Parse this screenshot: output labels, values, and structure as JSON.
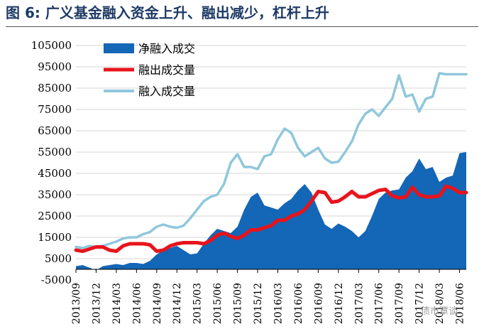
{
  "title": "图 6:  广义基金融入资金上升、融出减少，杠杆上升",
  "watermark": "债市覃谈",
  "colors": {
    "net_fill": "#1466b6",
    "lend_line": "#e8141b",
    "borrow_line": "#8fc7db",
    "title": "#1f3b66"
  },
  "chart_data": {
    "type": "area",
    "ylim": [
      -5000,
      105000
    ],
    "yticks": [
      -5000,
      5000,
      15000,
      25000,
      35000,
      45000,
      55000,
      65000,
      75000,
      85000,
      95000,
      105000
    ],
    "ytick_labels": [
      "-5000",
      "5000",
      "15000",
      "25000",
      "35000",
      "45000",
      "55000",
      "65000",
      "75000",
      "85000",
      "95000",
      "105000"
    ],
    "xtick_labels": [
      "2013/09",
      "2013/12",
      "2014/03",
      "2014/06",
      "2014/09",
      "2014/12",
      "2015/03",
      "2015/06",
      "2015/09",
      "2015/12",
      "2016/03",
      "2016/06",
      "2016/09",
      "2016/12",
      "2017/03",
      "2017/06",
      "2017/09",
      "2017/12",
      "2018/03",
      "2018/06"
    ],
    "grid": true,
    "legend_position": "top-left",
    "x": [
      "2013/09",
      "2013/10",
      "2013/11",
      "2013/12",
      "2014/01",
      "2014/02",
      "2014/03",
      "2014/04",
      "2014/05",
      "2014/06",
      "2014/07",
      "2014/08",
      "2014/09",
      "2014/10",
      "2014/11",
      "2014/12",
      "2015/01",
      "2015/02",
      "2015/03",
      "2015/04",
      "2015/05",
      "2015/06",
      "2015/07",
      "2015/08",
      "2015/09",
      "2015/10",
      "2015/11",
      "2015/12",
      "2016/01",
      "2016/02",
      "2016/03",
      "2016/04",
      "2016/05",
      "2016/06",
      "2016/07",
      "2016/08",
      "2016/09",
      "2016/10",
      "2016/11",
      "2016/12",
      "2017/01",
      "2017/02",
      "2017/03",
      "2017/04",
      "2017/05",
      "2017/06",
      "2017/07",
      "2017/08",
      "2017/09",
      "2017/10",
      "2017/11",
      "2017/12",
      "2018/01",
      "2018/02",
      "2018/03",
      "2018/04",
      "2018/05",
      "2018/06",
      "2018/07"
    ],
    "series": [
      {
        "name": "净融入成交",
        "type": "area",
        "values": [
          1500,
          2000,
          800,
          -500,
          1500,
          2000,
          2500,
          2000,
          3000,
          3000,
          2500,
          4000,
          7000,
          9000,
          10000,
          11000,
          9000,
          7000,
          7500,
          12000,
          16000,
          19000,
          18000,
          17000,
          20000,
          28000,
          34000,
          36000,
          30000,
          29000,
          28000,
          31000,
          33000,
          37000,
          40000,
          36000,
          28000,
          21000,
          19000,
          21500,
          20000,
          18000,
          15000,
          18000,
          25000,
          33000,
          36000,
          37000,
          37500,
          43000,
          46000,
          52000,
          47000,
          48000,
          41000,
          43000,
          44000,
          54500,
          55000
        ]
      },
      {
        "name": "融出成交量",
        "type": "line",
        "values": [
          9000,
          8500,
          9500,
          10500,
          10500,
          9000,
          8500,
          11000,
          12000,
          12000,
          12000,
          11500,
          8500,
          9000,
          11000,
          12000,
          12500,
          12500,
          12500,
          12000,
          13500,
          16000,
          17000,
          15500,
          14500,
          16000,
          18500,
          18500,
          19500,
          20500,
          23000,
          23000,
          25000,
          26000,
          28000,
          32000,
          36500,
          36000,
          31500,
          32000,
          34000,
          36500,
          34000,
          34000,
          35500,
          37000,
          37500,
          34500,
          33500,
          34000,
          38500,
          35000,
          34000,
          34000,
          34500,
          39000,
          38000,
          36000,
          36000
        ]
      },
      {
        "name": "融入成交量",
        "type": "line",
        "values": [
          10500,
          10000,
          11000,
          10500,
          11000,
          12000,
          13000,
          14500,
          15000,
          15000,
          16500,
          17500,
          20000,
          21000,
          20000,
          19500,
          20500,
          24000,
          28000,
          32000,
          34000,
          35000,
          40000,
          50000,
          54000,
          48000,
          48000,
          47000,
          53000,
          54000,
          61000,
          66000,
          64000,
          57000,
          53000,
          55000,
          57000,
          52000,
          50000,
          50500,
          55000,
          60000,
          68000,
          73000,
          75000,
          72000,
          76000,
          80000,
          91000,
          81000,
          82000,
          74000,
          80000,
          81000,
          92000,
          91500,
          91500,
          91500,
          91500
        ]
      }
    ]
  }
}
